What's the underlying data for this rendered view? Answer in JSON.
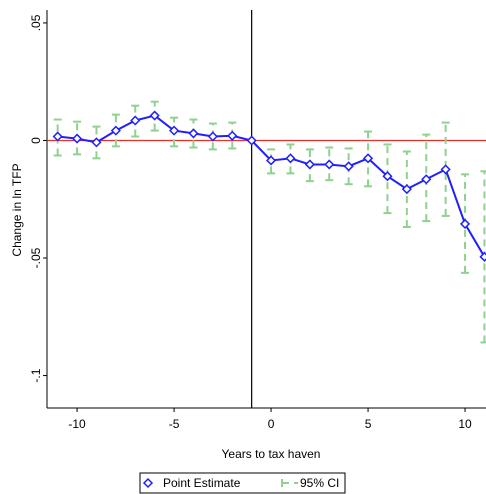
{
  "chart_data": {
    "type": "line",
    "x_label": "Years to tax haven",
    "y_label": "Change in ln TFP",
    "x": [
      -11,
      -10,
      -9,
      -8,
      -7,
      -6,
      -5,
      -4,
      -3,
      -2,
      -1,
      0,
      1,
      2,
      3,
      4,
      5,
      6,
      7,
      8,
      9,
      10,
      11
    ],
    "series": [
      {
        "name": "Point Estimate",
        "color": "#1f1fff",
        "values": [
          0.0017,
          0.0008,
          -0.0008,
          0.0042,
          0.0085,
          0.0106,
          0.0042,
          0.003,
          0.0017,
          0.002,
          0,
          -0.0085,
          -0.0076,
          -0.0102,
          -0.0102,
          -0.011,
          -0.0076,
          -0.0152,
          -0.0207,
          -0.0165,
          -0.0123,
          -0.0355,
          -0.0495
        ]
      }
    ],
    "ci": {
      "name": "95% CI",
      "color": "#8fd18f",
      "upper": [
        0.0089,
        0.008,
        0.0059,
        0.011,
        0.0148,
        0.0165,
        0.0097,
        0.0089,
        0.0072,
        0.0076,
        null,
        -0.0038,
        -0.0017,
        -0.0038,
        -0.003,
        -0.0034,
        0.0038,
        -0.0017,
        -0.0047,
        0.0025,
        0.0076,
        -0.0144,
        -0.0131
      ],
      "lower": [
        -0.0064,
        -0.0059,
        -0.0076,
        -0.0025,
        0.0017,
        0.0042,
        -0.0025,
        -0.003,
        -0.0038,
        -0.0034,
        null,
        -0.014,
        -0.014,
        -0.0173,
        -0.0169,
        -0.0186,
        -0.0195,
        -0.0309,
        -0.0368,
        -0.0343,
        -0.0321,
        -0.0563,
        -0.0859
      ]
    },
    "hline": {
      "value": 0,
      "color": "#e8302a"
    },
    "vline": {
      "value": -1,
      "color": "#000000"
    },
    "xlim": [
      -11.55,
      11.08
    ],
    "ylim": [
      -0.1138,
      0.0555
    ],
    "xticks": [
      {
        "value": -10,
        "label": "-10"
      },
      {
        "value": -5,
        "label": "-5"
      },
      0,
      5,
      10
    ],
    "yticks": [
      {
        "value": 0.05,
        "label": ".05"
      },
      0,
      {
        "value": -0.05,
        "label": "-.05"
      },
      {
        "value": -0.1,
        "label": "-.1"
      }
    ],
    "legend": "bottom"
  }
}
